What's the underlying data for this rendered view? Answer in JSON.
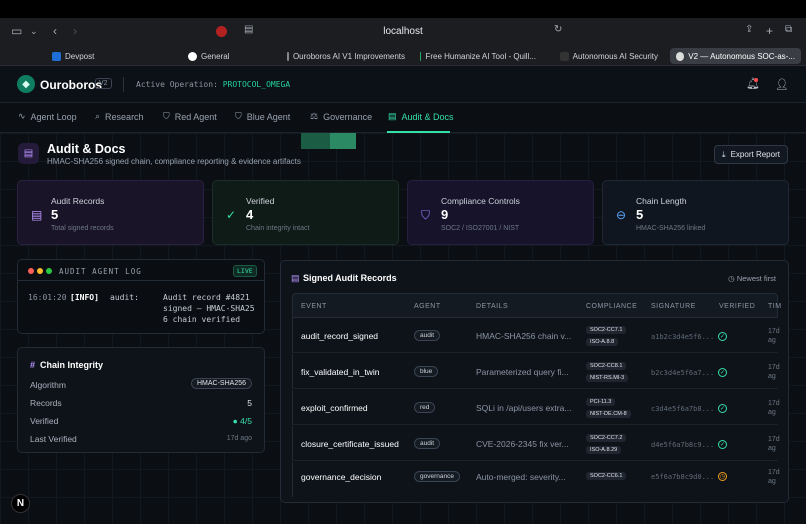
{
  "browser": {
    "url": "localhost",
    "tabs": [
      {
        "label": "Devpost",
        "color": "#1d6fd6"
      },
      {
        "label": "General",
        "color": "#ffffff"
      },
      {
        "label": "Ouroboros AI V1 Improvements",
        "color": "#888888"
      },
      {
        "label": "Free Humanize AI Tool - Quill...",
        "color": "#2ea36b"
      },
      {
        "label": "Autonomous AI Security",
        "color": "#333333"
      },
      {
        "label": "V2 — Autonomous SOC-as-...",
        "color": "#dddddd"
      }
    ]
  },
  "app": {
    "brand": "Ouroboros",
    "version": "V2",
    "active_op_label": "Active Operation:",
    "active_op_value": "PROTOCOL_OMEGA"
  },
  "nav": [
    {
      "label": "Agent Loop",
      "icon": "activity-icon"
    },
    {
      "label": "Research",
      "icon": "search-icon"
    },
    {
      "label": "Red Agent",
      "icon": "shield-icon"
    },
    {
      "label": "Blue Agent",
      "icon": "shield-check-icon"
    },
    {
      "label": "Governance",
      "icon": "scale-icon"
    },
    {
      "label": "Audit & Docs",
      "icon": "document-icon",
      "active": true
    }
  ],
  "page": {
    "title": "Audit & Docs",
    "subtitle": "HMAC-SHA256 signed chain, compliance reporting & evidence artifacts",
    "export_label": "Export Report"
  },
  "stats": [
    {
      "label": "Audit Records",
      "value": "5",
      "sub": "Total signed records",
      "color": "#b995ff",
      "bg": "#1a1428"
    },
    {
      "label": "Verified",
      "value": "4",
      "sub": "Chain integrity intact",
      "color": "#35e0a6",
      "bg": "#0f1b17"
    },
    {
      "label": "Compliance Controls",
      "value": "9",
      "sub": "SOC2 / ISO27001 / NIST",
      "color": "#9a7cff",
      "bg": "#16132a"
    },
    {
      "label": "Chain Length",
      "value": "5",
      "sub": "HMAC-SHA256 linked",
      "color": "#5aa8ff",
      "bg": "#10161f"
    }
  ],
  "log": {
    "title": "AUDIT AGENT LOG",
    "live": "LIVE",
    "time": "16:01:20",
    "level": "[INFO]",
    "source": "audit:",
    "message_lines": [
      "Audit record #4821",
      "signed — HMAC-SHA25",
      "6 chain verified"
    ]
  },
  "chain": {
    "title": "Chain Integrity",
    "rows": [
      {
        "label": "Algorithm",
        "value": "HMAC-SHA256"
      },
      {
        "label": "Records",
        "value": "5"
      },
      {
        "label": "Verified",
        "value": "4/5"
      },
      {
        "label": "Last Verified",
        "value": "17d ago"
      }
    ]
  },
  "records": {
    "title": "Signed Audit Records",
    "sort": "Newest first",
    "columns": [
      "EVENT",
      "AGENT",
      "DETAILS",
      "COMPLIANCE",
      "SIGNATURE",
      "VERIFIED",
      "TIM"
    ],
    "rows": [
      {
        "event": "audit_record_signed",
        "agent": "audit",
        "details": "HMAC-SHA256 chain v...",
        "compliance": [
          "SOC2-CC7.1",
          "ISO-A.8.8"
        ],
        "signature": "a1b2c3d4e5f6...",
        "verified": true,
        "time": [
          "17d",
          "ag"
        ]
      },
      {
        "event": "fix_validated_in_twin",
        "agent": "blue",
        "details": "Parameterized query fi...",
        "compliance": [
          "SOC2-CC8.1",
          "NIST-RS.MI-3"
        ],
        "signature": "b2c3d4e5f6a7...",
        "verified": true,
        "time": [
          "17d",
          "ag"
        ]
      },
      {
        "event": "exploit_confirmed",
        "agent": "red",
        "details": "SQLi in /api/users extra...",
        "compliance": [
          "PCI-11.3",
          "NIST-DE.CM-8"
        ],
        "signature": "c3d4e5f6a7b8...",
        "verified": true,
        "time": [
          "17d",
          "ag"
        ]
      },
      {
        "event": "closure_certificate_issued",
        "agent": "audit",
        "details": "CVE-2026-2345 fix ver...",
        "compliance": [
          "SOC2-CC7.2",
          "ISO-A.8.29"
        ],
        "signature": "d4e5f6a7b8c9...",
        "verified": true,
        "time": [
          "17d",
          "ag"
        ]
      },
      {
        "event": "governance_decision",
        "agent": "governance",
        "details": "Auto-merged: severity...",
        "compliance": [
          "SOC2-CC6.1"
        ],
        "signature": "e5f6a7b8c9d0...",
        "verified": false,
        "time": [
          "17d",
          "ag"
        ]
      }
    ]
  },
  "next_badge": "N"
}
